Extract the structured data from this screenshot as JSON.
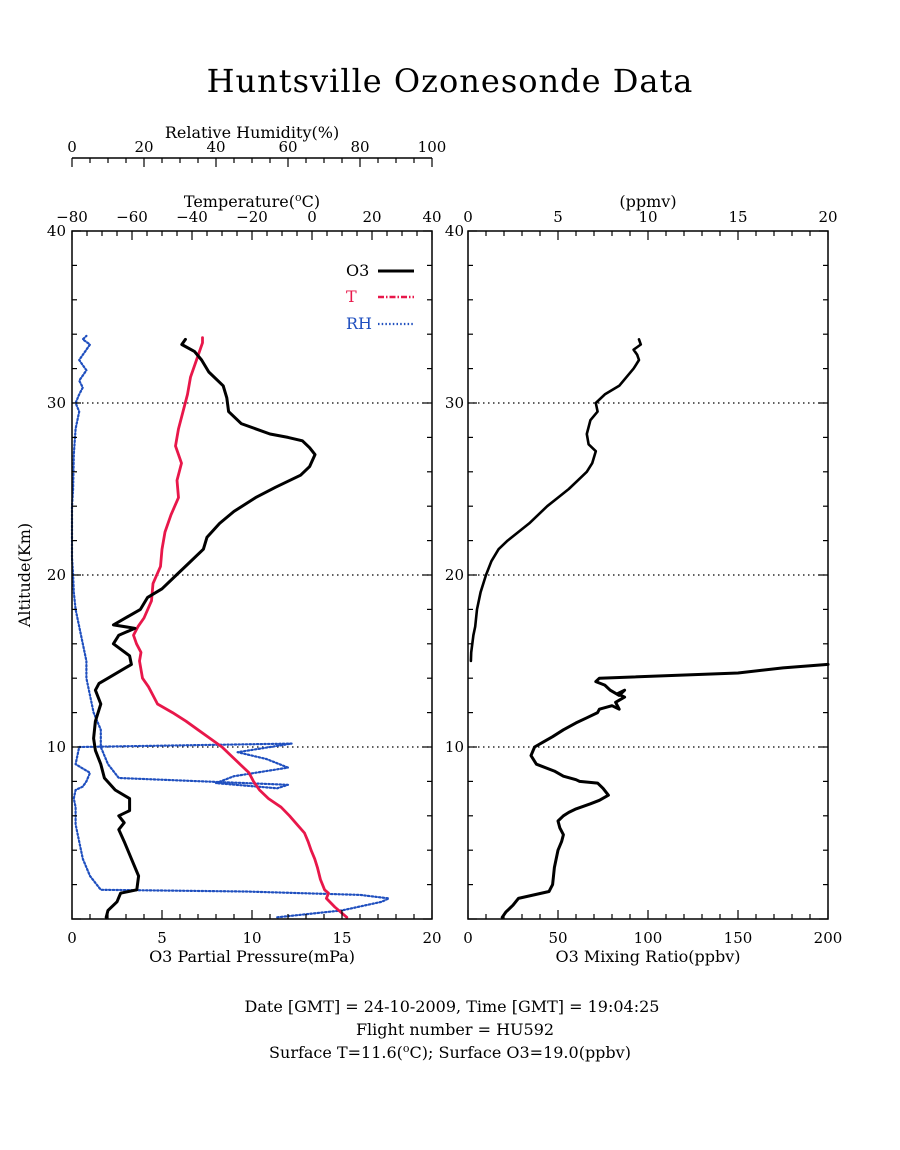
{
  "title": "Huntsville Ozonesonde Data",
  "footer": {
    "line1": "Date [GMT] = 24-10-2009,  Time [GMT] = 19:04:25",
    "line2": "Flight number = HU592",
    "line3_a": "Surface T=11.6(",
    "line3_sup": "o",
    "line3_b": "C); Surface O3=19.0(ppbv)"
  },
  "colors": {
    "o3": "#000000",
    "temperature": "#e8174a",
    "rh": "#1f4fbf",
    "axis": "#000000"
  },
  "chart_data": [
    {
      "type": "line",
      "panel": "left",
      "ylabel": "Altitude(Km)",
      "ylim": [
        0,
        40
      ],
      "yticks": [
        10,
        20,
        30,
        40
      ],
      "gridlines_y": [
        10,
        20,
        30
      ],
      "grid_style": "dotted",
      "legend": {
        "position": "top-right",
        "entries": [
          {
            "label": "O3",
            "series": "o3"
          },
          {
            "label": "T",
            "series": "temperature"
          },
          {
            "label": "RH",
            "series": "rh"
          }
        ]
      },
      "axes": {
        "o3": {
          "label": "O3 Partial Pressure(mPa)",
          "lim": [
            0,
            20
          ],
          "ticks": [
            0,
            5,
            10,
            15,
            20
          ],
          "position": "bottom"
        },
        "temperature": {
          "label_a": "Temperature(",
          "label_sup": "o",
          "label_b": "C)",
          "lim": [
            -80,
            40
          ],
          "ticks": [
            -80,
            -60,
            -40,
            -20,
            0,
            20,
            40
          ],
          "position": "top"
        },
        "rh": {
          "label": "Relative Humidity(%)",
          "lim": [
            0,
            100
          ],
          "ticks": [
            0,
            20,
            40,
            60,
            80,
            100
          ],
          "position": "top-outer"
        }
      },
      "series": [
        {
          "key": "o3",
          "name": "O3",
          "x": [
            1.9,
            2.0,
            2.5,
            2.7,
            3.6,
            3.7,
            3.3,
            2.9,
            2.6,
            2.9,
            2.6,
            3.2,
            3.2,
            2.4,
            1.8,
            1.6,
            1.3,
            1.2,
            1.3,
            1.6,
            1.3,
            1.5,
            2.0,
            3.3,
            3.2,
            2.3,
            2.6,
            3.5,
            2.3,
            3.8,
            4.2,
            5.0,
            5.8,
            6.5,
            7.3,
            7.5,
            8.2,
            9.0,
            10.2,
            11.3,
            12.7,
            13.2,
            13.5,
            13.2,
            12.8,
            12.0,
            11.0,
            9.4,
            8.7,
            8.6,
            8.4,
            7.6,
            7.2,
            6.8,
            6.1,
            6.3
          ],
          "y": [
            0.1,
            0.5,
            1.0,
            1.5,
            1.7,
            2.5,
            3.5,
            4.5,
            5.2,
            5.6,
            6.0,
            6.3,
            7.0,
            7.5,
            8.2,
            9.0,
            9.8,
            10.5,
            11.5,
            12.5,
            13.3,
            13.7,
            14.0,
            14.8,
            15.3,
            16.0,
            16.5,
            16.9,
            17.1,
            18.0,
            18.7,
            19.2,
            20.0,
            20.7,
            21.5,
            22.2,
            23.0,
            23.7,
            24.5,
            25.1,
            25.8,
            26.3,
            27.0,
            27.4,
            27.8,
            28.0,
            28.2,
            28.8,
            29.5,
            30.3,
            31.0,
            31.8,
            32.5,
            33.0,
            33.4,
            33.7
          ]
        },
        {
          "key": "temperature",
          "name": "T",
          "x": [
            11.6,
            7.6,
            4.8,
            5.5,
            4.2,
            2.8,
            1.8,
            0.9,
            -0.3,
            -1.3,
            -2.5,
            -5.0,
            -7.5,
            -10.3,
            -14.5,
            -17.5,
            -19.5,
            -21.0,
            -24.0,
            -27.0,
            -30.0,
            -34.0,
            -38.0,
            -42.0,
            -46.5,
            -51.5,
            -53.0,
            -54.5,
            -56.5,
            -57.0,
            -57.5,
            -57.0,
            -58.5,
            -59.5,
            -58.0,
            -56.0,
            -53.5,
            -53.0,
            -50.5,
            -50.0,
            -49.0,
            -47.0,
            -44.5,
            -45.0,
            -43.5,
            -45.5,
            -44.5,
            -43.0,
            -41.5,
            -40.5,
            -38.5,
            -37.5,
            -36.5,
            -36.5
          ],
          "y": [
            0.1,
            0.7,
            1.2,
            1.5,
            1.7,
            2.3,
            3.0,
            3.5,
            4.0,
            4.5,
            5.0,
            5.5,
            6.0,
            6.5,
            7.0,
            7.5,
            8.0,
            8.5,
            9.0,
            9.5,
            10.0,
            10.5,
            11.0,
            11.5,
            12.0,
            12.5,
            13.0,
            13.5,
            14.0,
            14.5,
            15.0,
            15.5,
            16.0,
            16.5,
            17.0,
            17.5,
            18.5,
            19.5,
            20.5,
            21.5,
            22.5,
            23.5,
            24.5,
            25.5,
            26.5,
            27.5,
            28.5,
            29.5,
            30.5,
            31.5,
            32.5,
            33.0,
            33.5,
            33.8
          ]
        },
        {
          "key": "rh",
          "name": "RH",
          "x": [
            57,
            75,
            86,
            88,
            80,
            48,
            8,
            5,
            3,
            2,
            1,
            1,
            0.5,
            1,
            3,
            4,
            5,
            1,
            2,
            61,
            46,
            54,
            60,
            45,
            40,
            57,
            60,
            13,
            10,
            8,
            8,
            6,
            5,
            4,
            4,
            3,
            2,
            1,
            0.5,
            0.3,
            0,
            0,
            0,
            0,
            0.3,
            0.5,
            1,
            2,
            1,
            2,
            3,
            2,
            3,
            4,
            3,
            2,
            3,
            4,
            5,
            3,
            4
          ],
          "y": [
            0.1,
            0.5,
            1.0,
            1.2,
            1.4,
            1.6,
            1.7,
            2.5,
            3.5,
            4.5,
            5.5,
            6.5,
            7.0,
            7.5,
            7.7,
            8.0,
            8.5,
            9.0,
            10.0,
            10.2,
            9.7,
            9.3,
            8.8,
            8.3,
            7.9,
            7.6,
            7.8,
            8.2,
            9.0,
            10.0,
            11.0,
            12.0,
            13.0,
            14.0,
            15.0,
            16.0,
            17.0,
            18.0,
            19.0,
            20.0,
            21.0,
            22.0,
            23.0,
            24.0,
            25.0,
            27.0,
            28.5,
            29.5,
            30.0,
            30.5,
            30.9,
            31.3,
            31.6,
            31.9,
            32.2,
            32.5,
            32.8,
            33.1,
            33.4,
            33.7,
            33.9
          ]
        }
      ]
    },
    {
      "type": "line",
      "panel": "right",
      "ylim": [
        0,
        40
      ],
      "yticks": [
        10,
        20,
        30,
        40
      ],
      "gridlines_y": [
        10,
        20,
        30
      ],
      "grid_style": "dotted",
      "axes": {
        "bottom": {
          "label": "O3 Mixing Ratio(ppbv)",
          "lim": [
            0,
            200
          ],
          "ticks": [
            0,
            50,
            100,
            150,
            200
          ]
        },
        "top": {
          "label": "(ppmv)",
          "lim": [
            0,
            20
          ],
          "ticks": [
            0,
            5,
            10,
            15,
            20
          ]
        }
      },
      "series": [
        {
          "name": "O3",
          "axis": "bottom",
          "x": [
            19,
            21,
            25,
            28,
            45,
            47,
            48,
            50,
            52,
            53,
            51,
            50,
            53,
            56,
            60,
            68,
            73,
            78,
            75,
            72,
            62,
            60,
            53,
            48,
            38,
            35,
            37,
            42,
            47,
            53,
            60,
            66,
            72,
            73,
            80,
            84,
            82,
            87,
            83,
            87,
            84,
            79,
            76,
            71,
            73,
            150,
            175,
            200
          ],
          "y": [
            0.1,
            0.4,
            0.8,
            1.2,
            1.6,
            2.0,
            3.0,
            4.0,
            4.5,
            4.9,
            5.3,
            5.7,
            6.0,
            6.2,
            6.4,
            6.7,
            6.9,
            7.2,
            7.6,
            7.9,
            8.0,
            8.1,
            8.3,
            8.6,
            9.0,
            9.5,
            10.0,
            10.3,
            10.6,
            11.0,
            11.4,
            11.7,
            12.0,
            12.2,
            12.4,
            12.2,
            12.6,
            12.9,
            13.1,
            13.3,
            13.0,
            13.3,
            13.6,
            13.8,
            14.0,
            14.3,
            14.6,
            14.8
          ]
        },
        {
          "name": "O3",
          "axis": "top",
          "x": [
            0.16,
            0.18,
            0.3,
            0.4,
            0.5,
            0.7,
            1.0,
            1.3,
            1.7,
            2.2,
            2.8,
            3.4,
            3.9,
            4.4,
            5.0,
            5.6,
            6.1,
            6.6,
            6.9,
            7.1,
            6.7,
            6.6,
            6.8,
            7.2,
            7.1,
            7.6,
            8.4,
            8.8,
            9.2,
            9.5,
            9.4,
            9.2,
            9.6,
            9.5
          ],
          "y": [
            15.0,
            15.5,
            16.5,
            17.0,
            18.0,
            19.0,
            20.0,
            20.8,
            21.5,
            22.0,
            22.5,
            23.0,
            23.5,
            24.0,
            24.5,
            25.0,
            25.5,
            26.0,
            26.5,
            27.2,
            27.6,
            28.2,
            29.0,
            29.5,
            30.0,
            30.5,
            31.0,
            31.5,
            32.0,
            32.5,
            32.8,
            33.1,
            33.4,
            33.7
          ]
        }
      ]
    }
  ]
}
